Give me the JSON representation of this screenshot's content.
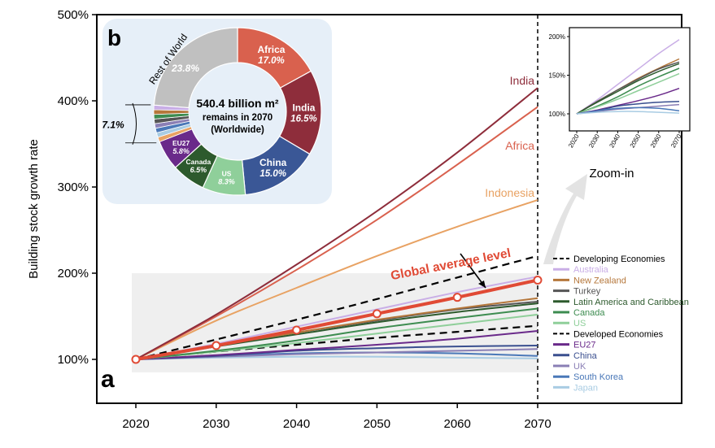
{
  "chart_data": [
    {
      "panel": "a",
      "type": "line",
      "ylabel": "Building stock growth rate",
      "xlim": [
        2020,
        2070
      ],
      "ylim": [
        100,
        500
      ],
      "x_ticks": [
        "2020",
        "2030",
        "2040",
        "2050",
        "2060",
        "2070"
      ],
      "y_ticks": [
        "100%",
        "200%",
        "300%",
        "400%",
        "500%"
      ],
      "x": [
        2020,
        2030,
        2040,
        2050,
        2060,
        2070
      ],
      "series": [
        {
          "name": "India",
          "color": "#8e2d3b",
          "values": [
            100,
            152,
            210,
            272,
            340,
            415
          ],
          "label": "India",
          "dash": false
        },
        {
          "name": "Africa",
          "color": "#d9614e",
          "values": [
            100,
            150,
            204,
            262,
            326,
            393
          ],
          "label": "Africa",
          "dash": false
        },
        {
          "name": "Indonesia",
          "color": "#e8a263",
          "values": [
            100,
            145,
            183,
            220,
            254,
            285
          ],
          "label": "Indonesia",
          "dash": false
        },
        {
          "name": "Developing Economies",
          "color": "#000000",
          "values": [
            100,
            123,
            146,
            170,
            195,
            220
          ],
          "dash": true
        },
        {
          "name": "Australia",
          "color": "#c9aee6",
          "values": [
            100,
            118,
            138,
            158,
            178,
            196
          ],
          "dash": false
        },
        {
          "name": "New Zealand",
          "color": "#b5773b",
          "values": [
            100,
            116,
            131,
            146,
            159,
            171
          ],
          "dash": false
        },
        {
          "name": "Turkey",
          "color": "#555555",
          "values": [
            100,
            116,
            131,
            145,
            158,
            167
          ],
          "dash": false
        },
        {
          "name": "Latin America and Caribbean",
          "color": "#2d5a2d",
          "values": [
            100,
            115,
            129,
            143,
            155,
            165
          ],
          "dash": false
        },
        {
          "name": "Canada",
          "color": "#3d8c50",
          "values": [
            100,
            110,
            122,
            136,
            148,
            159
          ],
          "dash": false
        },
        {
          "name": "US",
          "color": "#8fcf9a",
          "values": [
            100,
            109,
            119,
            130,
            141,
            152
          ],
          "dash": false
        },
        {
          "name": "Developed Economies",
          "color": "#000000",
          "values": [
            100,
            109,
            117,
            125,
            132,
            139
          ],
          "dash": true
        },
        {
          "name": "EU27",
          "color": "#6a2a8a",
          "values": [
            100,
            105,
            111,
            117,
            124,
            133
          ],
          "dash": false
        },
        {
          "name": "China",
          "color": "#3a4f8f",
          "values": [
            100,
            104,
            110,
            113,
            115,
            116
          ],
          "dash": false
        },
        {
          "name": "UK",
          "color": "#8a7fb5",
          "values": [
            100,
            103,
            106,
            108,
            110,
            112
          ],
          "dash": false
        },
        {
          "name": "South Korea",
          "color": "#4a78b8",
          "values": [
            100,
            104,
            107,
            108,
            107,
            104
          ],
          "dash": false
        },
        {
          "name": "Japan",
          "color": "#a9cce3",
          "values": [
            100,
            102,
            103,
            103,
            102,
            101
          ],
          "dash": false
        }
      ],
      "global_average": {
        "label": "Global average level",
        "color": "#e04a35",
        "values": [
          100,
          116,
          134,
          153,
          172,
          192
        ]
      },
      "shaded_region": [
        85,
        200
      ],
      "zoom_label": "Zoom-in"
    },
    {
      "panel": "zoom",
      "type": "line",
      "xlim": [
        2020,
        2070
      ],
      "ylim": [
        90,
        210
      ],
      "x_ticks": [
        "2020",
        "2030",
        "2040",
        "2050",
        "2060",
        "2070"
      ],
      "y_ticks": [
        "100%",
        "150%",
        "200%"
      ],
      "x": [
        2020,
        2030,
        2040,
        2050,
        2060,
        2070
      ],
      "series_from": "panel a",
      "series_names": [
        "Australia",
        "New Zealand",
        "Turkey",
        "Latin America and Caribbean",
        "Canada",
        "US",
        "EU27",
        "China",
        "UK",
        "South Korea",
        "Japan"
      ]
    },
    {
      "panel": "b",
      "type": "pie",
      "center_text": [
        "540.4 billion m²",
        "remains in 2070",
        "(Worldwide)"
      ],
      "slices": [
        {
          "name": "Africa",
          "value": 17.0,
          "label": "17.0%",
          "color": "#d9614e"
        },
        {
          "name": "India",
          "value": 16.5,
          "label": "16.5%",
          "color": "#8e2d3b"
        },
        {
          "name": "China",
          "value": 15.0,
          "label": "15.0%",
          "color": "#3a5796"
        },
        {
          "name": "US",
          "value": 8.3,
          "label": "8.3%",
          "color": "#8fcf9a"
        },
        {
          "name": "Canada",
          "value": 6.5,
          "label": "6.5%",
          "color": "#2d5a2d"
        },
        {
          "name": "EU27",
          "value": 5.8,
          "label": "5.8%",
          "color": "#6a2a8a"
        },
        {
          "name": "",
          "value": 7.1,
          "label": "7.1%",
          "color": "#9a9a9a",
          "sub": [
            "#e8a263",
            "#a9cce3",
            "#4a78b8",
            "#8a7fb5",
            "#555555",
            "#3d8c50",
            "#b5773b",
            "#c9aee6"
          ]
        },
        {
          "name": "Rest of World",
          "value": 23.8,
          "label": "23.8%",
          "color": "#c0c0c0"
        }
      ]
    }
  ],
  "panel_labels": {
    "a": "a",
    "b": "b"
  }
}
